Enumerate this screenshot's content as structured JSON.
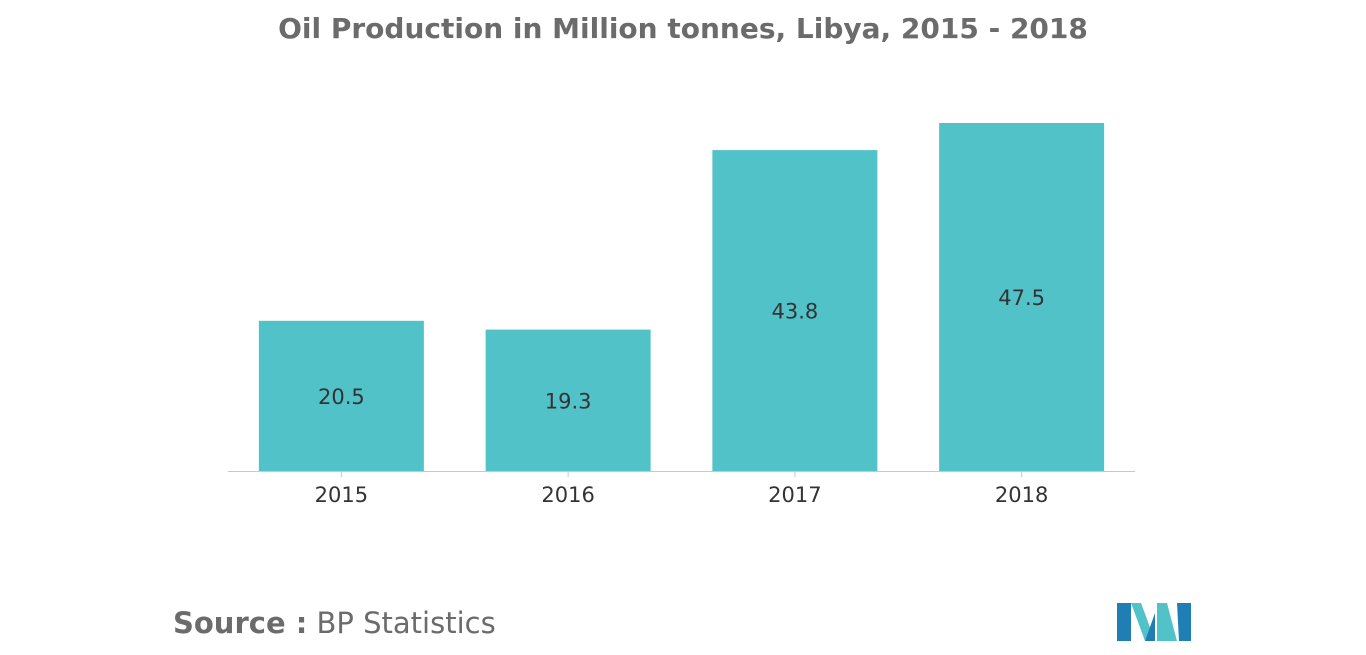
{
  "chart_data": {
    "type": "bar",
    "title": "Oil Production in Million tonnes, Libya, 2015 - 2018",
    "categories": [
      "2015",
      "2016",
      "2017",
      "2018"
    ],
    "values": [
      20.5,
      19.3,
      43.8,
      47.5
    ],
    "data_labels": [
      "20.5",
      "19.3",
      "43.8",
      "47.5"
    ],
    "xlabel": "",
    "ylabel": "",
    "ylim": [
      0,
      47.5
    ],
    "grid": false,
    "legend": "none",
    "bar_color": "#52c2c9",
    "axis_color": "#c8c8c8"
  },
  "source": {
    "label": "Source :",
    "value": " BP Statistics"
  },
  "logo": {
    "name": "mordor-intelligence-logo",
    "colors": [
      "#1f7fb5",
      "#52c2c9"
    ]
  },
  "colors": {
    "title": "#6b6b6b",
    "text": "#333333",
    "background": "#ffffff"
  }
}
